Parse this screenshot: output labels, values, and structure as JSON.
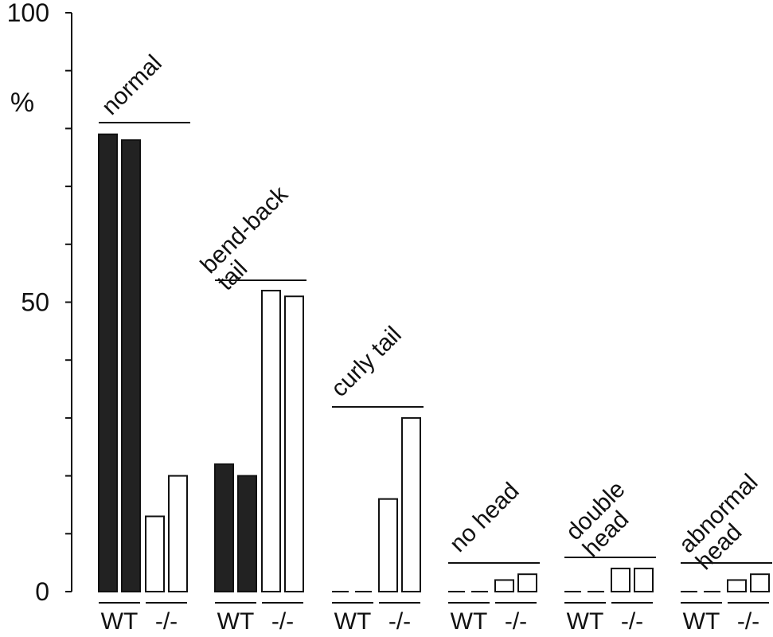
{
  "chart_data": {
    "type": "bar",
    "title": "",
    "xlabel": "",
    "ylabel": "%",
    "ylim": [
      0,
      100
    ],
    "yticks": [
      0,
      50,
      100
    ],
    "ytick_labels": [
      "0",
      "50",
      "100"
    ],
    "legend": "none",
    "grid": false,
    "colors": {
      "wt": "#222222",
      "mutant": "#ffffff",
      "outline": "#111111"
    },
    "genotype_labels": [
      "WT",
      "-/-"
    ],
    "groups": [
      {
        "name_lines": [
          "normal"
        ],
        "values": {
          "WT": [
            79,
            78
          ],
          "-/-": [
            13,
            20
          ]
        }
      },
      {
        "name_lines": [
          "bend-back",
          "tail"
        ],
        "values": {
          "WT": [
            22,
            20
          ],
          "-/-": [
            52,
            51
          ]
        }
      },
      {
        "name_lines": [
          "curly tail"
        ],
        "values": {
          "WT": [
            0,
            0
          ],
          "-/-": [
            16,
            30
          ]
        }
      },
      {
        "name_lines": [
          "no head"
        ],
        "values": {
          "WT": [
            0,
            0
          ],
          "-/-": [
            2,
            3
          ]
        }
      },
      {
        "name_lines": [
          "double",
          "head"
        ],
        "values": {
          "WT": [
            0,
            0
          ],
          "-/-": [
            4,
            4
          ]
        }
      },
      {
        "name_lines": [
          "abnormal",
          "head"
        ],
        "values": {
          "WT": [
            0,
            0
          ],
          "-/-": [
            2,
            3
          ]
        }
      }
    ]
  }
}
